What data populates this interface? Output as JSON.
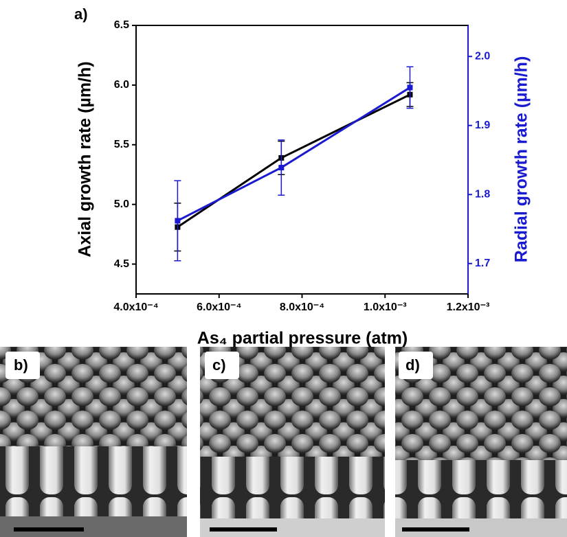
{
  "chart_data": {
    "type": "line",
    "panel_label": "a)",
    "xlabel": "As₄ partial pressure (atm)",
    "ylabel": "Axial growth rate (µm/h)",
    "y2label": "Radial growth rate (µm/h)",
    "x": [
      0.0005,
      0.00075,
      0.00106
    ],
    "series": [
      {
        "name": "Axial growth rate",
        "color": "#000000",
        "values": [
          4.81,
          5.39,
          5.92
        ],
        "errors": [
          0.2,
          0.14,
          0.1
        ]
      },
      {
        "name": "Radial growth rate",
        "color": "#1a1ad0",
        "axis": "y2",
        "values": [
          1.762,
          1.839,
          1.955
        ],
        "errors": [
          0.058,
          0.04,
          0.03
        ]
      }
    ],
    "xlim": [
      0.0004,
      0.0012
    ],
    "xticks": [
      {
        "value": 0.0004,
        "label": "4.0x10⁻⁴"
      },
      {
        "value": 0.0006,
        "label": "6.0x10⁻⁴"
      },
      {
        "value": 0.0008,
        "label": "8.0x10⁻⁴"
      },
      {
        "value": 0.001,
        "label": "1.0x10⁻³"
      },
      {
        "value": 0.0012,
        "label": "1.2x10⁻³"
      }
    ],
    "ylim": [
      4.25,
      6.5
    ],
    "yticks": [
      4.5,
      5.0,
      5.5,
      6.0,
      6.5
    ],
    "y2lim": [
      1.656,
      2.045
    ],
    "y2ticks": [
      1.7,
      1.8,
      1.9,
      2.0
    ],
    "y2color": "#1a1ad0"
  },
  "panels": [
    "b)",
    "c)",
    "d)"
  ]
}
